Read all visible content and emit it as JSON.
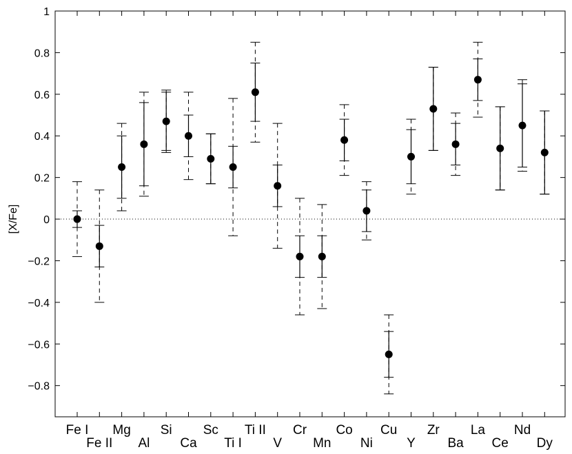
{
  "chart_data": {
    "type": "scatter",
    "title": "",
    "xlabel": "",
    "ylabel": "[X/Fe]",
    "ylim": [
      -0.95,
      1.0
    ],
    "yticks": [
      1,
      0.8,
      0.6,
      0.4,
      0.2,
      0,
      -0.2,
      -0.4,
      -0.6,
      -0.8
    ],
    "ytick_labels": [
      "1",
      "0.8",
      "0.6",
      "0.4",
      "0.2",
      "0",
      "−0.2",
      "−0.4",
      "−0.6",
      "−0.8"
    ],
    "grid": false,
    "reference_line": {
      "y": 0,
      "style": "dotted"
    },
    "categories": [
      "Fe I",
      "Fe II",
      "Mg",
      "Al",
      "Si",
      "Ca",
      "Sc",
      "Ti I",
      "Ti II",
      "V",
      "Cr",
      "Mn",
      "Co",
      "Ni",
      "Cu",
      "Y",
      "Zr",
      "Ba",
      "La",
      "Ce",
      "Nd",
      "Dy"
    ],
    "series": [
      {
        "marker": "filled-circle",
        "values": [
          0.0,
          -0.13,
          0.25,
          0.36,
          0.47,
          0.4,
          0.29,
          0.25,
          0.61,
          0.16,
          -0.18,
          -0.18,
          0.38,
          0.04,
          -0.65,
          0.3,
          0.53,
          0.36,
          0.67,
          0.34,
          0.45,
          0.32
        ],
        "err_solid": [
          0.04,
          0.1,
          0.15,
          0.2,
          0.14,
          0.1,
          0.12,
          0.1,
          0.14,
          0.1,
          0.1,
          0.1,
          0.1,
          0.1,
          0.11,
          0.13,
          0.2,
          0.1,
          0.1,
          0.2,
          0.2,
          0.2
        ],
        "err_dashed": [
          0.18,
          0.27,
          0.21,
          0.25,
          0.15,
          0.21,
          0.12,
          0.33,
          0.24,
          0.3,
          0.28,
          0.25,
          0.17,
          0.14,
          0.19,
          0.18,
          0.2,
          0.15,
          0.18,
          0.2,
          0.22,
          0.2
        ]
      }
    ]
  }
}
